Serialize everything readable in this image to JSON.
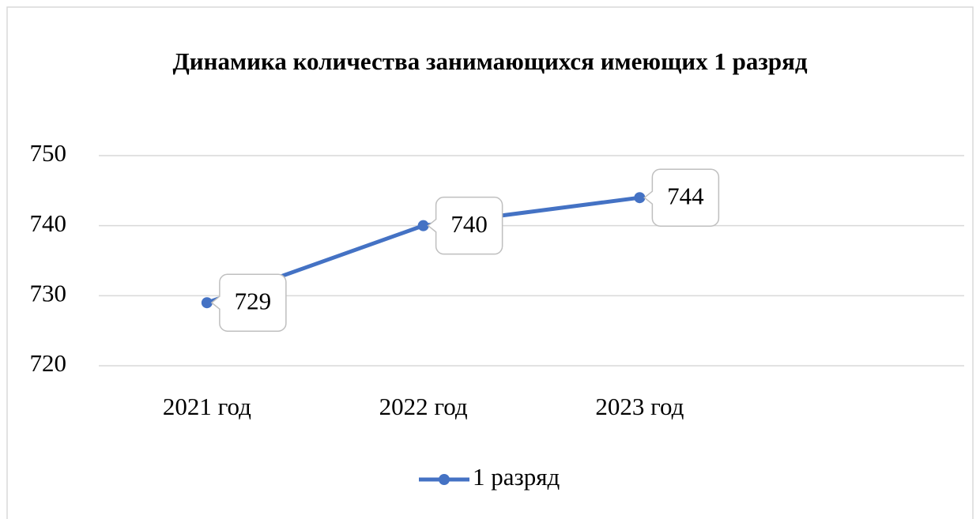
{
  "chart_data": {
    "type": "line",
    "title": "Динамика количества занимающихся имеющих 1 разряд",
    "categories": [
      "2021 год",
      "2022 год",
      "2023 год",
      null
    ],
    "series": [
      {
        "name": "1 разряд",
        "color": "#4472c4",
        "values": [
          729,
          740,
          744,
          null
        ]
      }
    ],
    "ylim": [
      720,
      750
    ],
    "yticks": [
      720,
      730,
      740,
      750
    ],
    "grid": true,
    "legend": "bottom",
    "data_labels": true
  }
}
